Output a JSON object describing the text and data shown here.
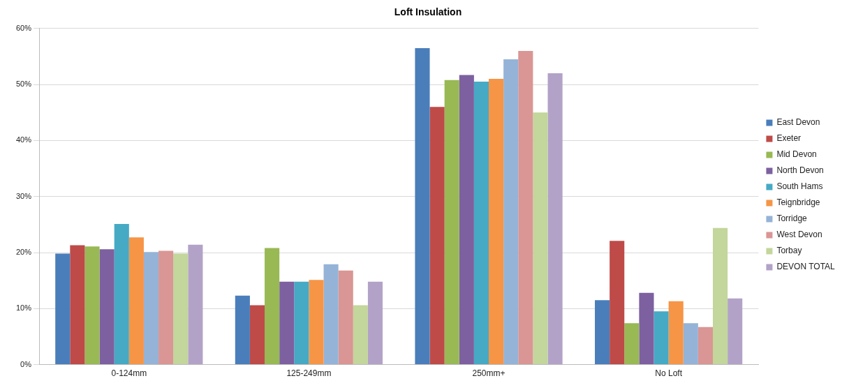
{
  "chart_data": {
    "type": "bar",
    "title": "Loft Insulation",
    "categories": [
      "0-124mm",
      "125-249mm",
      "250mm+",
      "No Loft"
    ],
    "series": [
      {
        "name": "East Devon",
        "color": "#4a7ebb",
        "values": [
          19.8,
          12.3,
          56.5,
          11.5
        ]
      },
      {
        "name": "Exeter",
        "color": "#be4b48",
        "values": [
          21.3,
          10.6,
          46,
          22.1
        ]
      },
      {
        "name": "Mid Devon",
        "color": "#98b954",
        "values": [
          21.1,
          20.8,
          50.8,
          7.4
        ]
      },
      {
        "name": "North Devon",
        "color": "#7d60a0",
        "values": [
          20.6,
          14.8,
          51.7,
          12.8
        ]
      },
      {
        "name": "South Hams",
        "color": "#46aac5",
        "values": [
          25.1,
          14.8,
          50.5,
          9.5
        ]
      },
      {
        "name": "Teignbridge",
        "color": "#f69546",
        "values": [
          22.7,
          15.1,
          51,
          11.3
        ]
      },
      {
        "name": "Torridge",
        "color": "#95b3d7",
        "values": [
          20.1,
          17.9,
          54.5,
          7.4
        ]
      },
      {
        "name": "West Devon",
        "color": "#d99694",
        "values": [
          20.3,
          16.8,
          56,
          6.7
        ]
      },
      {
        "name": "Torbay",
        "color": "#c3d69b",
        "values": [
          19.8,
          10.6,
          45,
          24.4
        ]
      },
      {
        "name": "DEVON TOTAL",
        "color": "#b3a2c7",
        "values": [
          21.4,
          14.8,
          52,
          11.8
        ]
      }
    ],
    "ylim": [
      0,
      60
    ],
    "yticks": [
      {
        "value": 0,
        "label": "0%"
      },
      {
        "value": 10,
        "label": "10%"
      },
      {
        "value": 20,
        "label": "20%"
      },
      {
        "value": 30,
        "label": "30%"
      },
      {
        "value": 40,
        "label": "40%"
      },
      {
        "value": 50,
        "label": "50%"
      },
      {
        "value": 60,
        "label": "60%"
      }
    ],
    "grid": "y",
    "legend": "right"
  }
}
